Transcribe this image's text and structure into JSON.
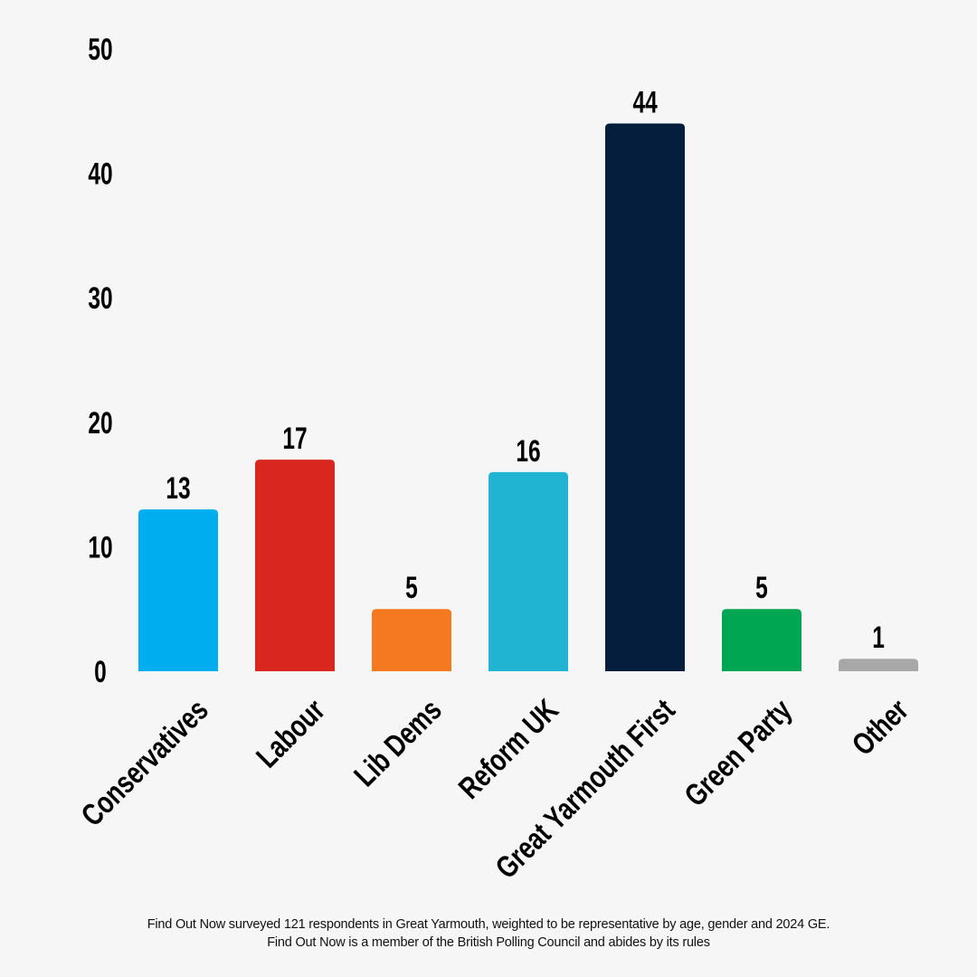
{
  "chart_data": {
    "type": "bar",
    "categories": [
      "Conservatives",
      "Labour",
      "Lib Dems",
      "Reform UK",
      "Great Yarmouth First",
      "Green Party",
      "Other"
    ],
    "values": [
      13,
      17,
      5,
      16,
      44,
      5,
      1
    ],
    "colors": [
      "#00aeef",
      "#d9261f",
      "#f47920",
      "#21b4d2",
      "#061e3e",
      "#00a651",
      "#a8a8a8"
    ],
    "ylim": [
      0,
      50
    ],
    "yticks": [
      0,
      10,
      20,
      30,
      40,
      50
    ],
    "grid": false,
    "legend": "none"
  },
  "footer": {
    "line1": "Find Out Now surveyed 121 respondents in Great Yarmouth, weighted to be representative by age, gender and 2024 GE.",
    "line2": "Find Out Now is a member of the British Polling Council and abides by its rules"
  }
}
